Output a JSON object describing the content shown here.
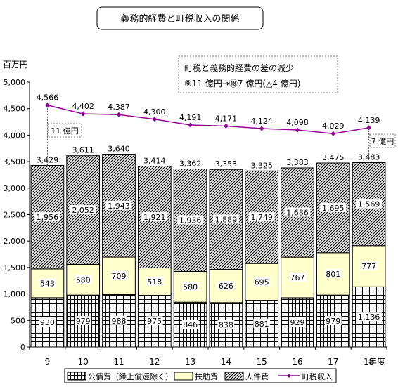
{
  "chart_data": {
    "type": "bar",
    "title": "義務的経費と町税収入の関係",
    "ylabel": "百万円",
    "xlabel": "年度",
    "ylim": [
      0,
      5000
    ],
    "y_ticks": [
      "0",
      "500",
      "1,000",
      "1,500",
      "2,000",
      "2,500",
      "3,000",
      "3,500",
      "4,000",
      "4,500",
      "5,000"
    ],
    "y_tick_values": [
      0,
      500,
      1000,
      1500,
      2000,
      2500,
      3000,
      3500,
      4000,
      4500,
      5000
    ],
    "categories": [
      "9",
      "10",
      "11",
      "12",
      "13",
      "14",
      "15",
      "16",
      "17",
      "18"
    ],
    "stacked_bars": true,
    "grid": false,
    "series": [
      {
        "name": "公債費（繰上償還除く）",
        "pattern": "grid",
        "values": [
          930,
          979,
          988,
          975,
          846,
          838,
          881,
          929,
          979,
          1136
        ],
        "labels": [
          "930",
          "979",
          "988",
          "975",
          "846",
          "838",
          "881",
          "929",
          "979",
          "1,136"
        ]
      },
      {
        "name": "扶助費",
        "color": "#ffffcc",
        "values": [
          543,
          580,
          709,
          518,
          580,
          626,
          695,
          767,
          801,
          777
        ],
        "labels": [
          "543",
          "580",
          "709",
          "518",
          "580",
          "626",
          "695",
          "767",
          "801",
          "777"
        ]
      },
      {
        "name": "人件費",
        "pattern": "diagonal-hatch",
        "values": [
          1956,
          2052,
          1943,
          1921,
          1936,
          1889,
          1749,
          1686,
          1695,
          1569
        ],
        "labels": [
          "1,956",
          "2,052",
          "1,943",
          "1,921",
          "1,936",
          "1,889",
          "1,749",
          "1,686",
          "1,695",
          "1,569"
        ]
      }
    ],
    "totals": [
      3429,
      3611,
      3640,
      3414,
      3362,
      3353,
      3325,
      3383,
      3475,
      3483
    ],
    "total_labels": [
      "3,429",
      "3,611",
      "3,640",
      "3,414",
      "3,362",
      "3,353",
      "3,325",
      "3,383",
      "3,475",
      "3,483"
    ],
    "line_series": {
      "name": "町税収入",
      "color": "#990099",
      "values": [
        4566,
        4402,
        4387,
        4300,
        4191,
        4171,
        4124,
        4098,
        4029,
        4139
      ],
      "labels": [
        "4,566",
        "4,402",
        "4,387",
        "4,300",
        "4,191",
        "4,171",
        "4,124",
        "4,098",
        "4,029",
        "4,139"
      ]
    },
    "annotations": {
      "box_line1": "町税と義務的経費の差の減少",
      "box_line2": "⑨11 億円→⑱7 億円(△4 億円)",
      "gap_first": "11 億円",
      "gap_last": "7 億円"
    },
    "legend_position": "bottom"
  }
}
